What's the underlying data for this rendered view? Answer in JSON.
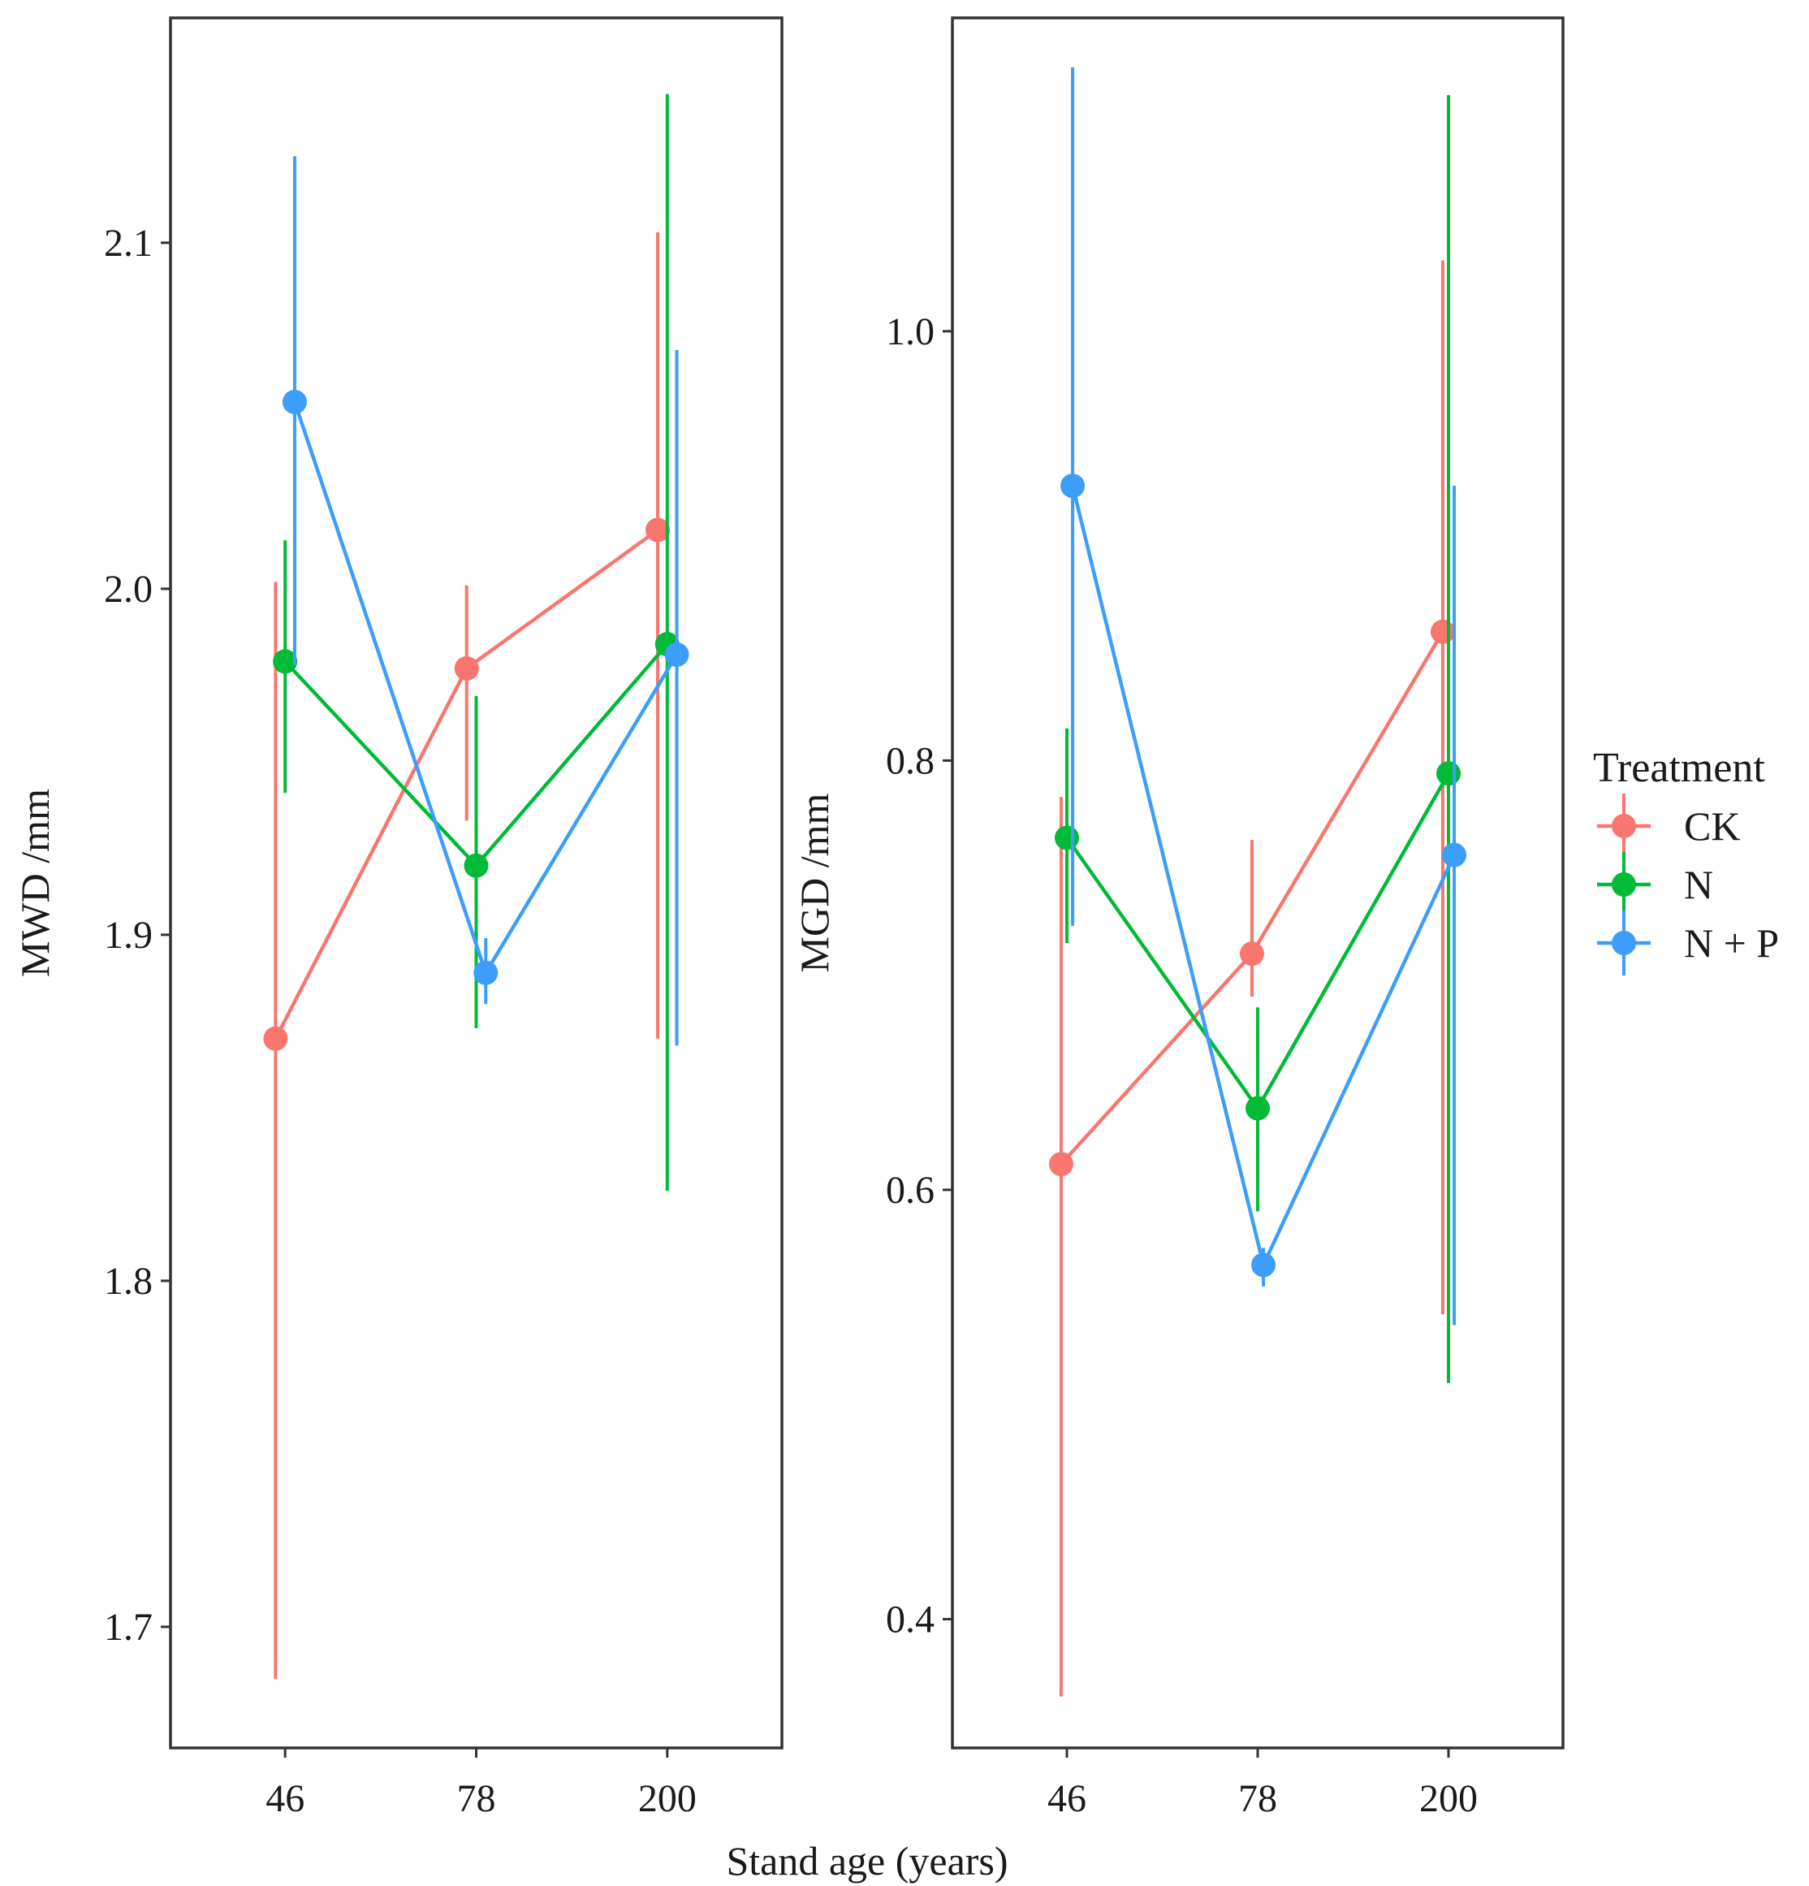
{
  "chart_data": [
    {
      "type": "line",
      "x_categories": [
        "46",
        "78",
        "200"
      ],
      "ylabel": "MWD /mm",
      "ylim": [
        1.665,
        2.165
      ],
      "yticks": [
        1.7,
        1.8,
        1.9,
        2.0,
        2.1
      ],
      "ytick_labels": [
        "1.7",
        "1.8",
        "1.9",
        "2.0",
        "2.1"
      ],
      "dodge": [
        -0.05,
        0.0,
        0.05
      ],
      "series": [
        {
          "name": "CK",
          "values": [
            1.87,
            1.977,
            2.017
          ],
          "lower": [
            1.685,
            1.933,
            1.87
          ],
          "upper": [
            2.002,
            2.001,
            2.103
          ]
        },
        {
          "name": "N",
          "values": [
            1.979,
            1.92,
            1.984
          ],
          "lower": [
            1.941,
            1.873,
            1.826
          ],
          "upper": [
            2.014,
            1.969,
            2.143
          ]
        },
        {
          "name": "N + P",
          "values": [
            2.054,
            1.889,
            1.981
          ],
          "lower": [
            1.978,
            1.88,
            1.868
          ],
          "upper": [
            2.125,
            1.899,
            2.069
          ]
        }
      ]
    },
    {
      "type": "line",
      "x_categories": [
        "46",
        "78",
        "200"
      ],
      "ylabel": "MGD /mm",
      "ylim": [
        0.34,
        1.146
      ],
      "yticks": [
        0.4,
        0.6,
        0.8,
        1.0
      ],
      "ytick_labels": [
        "0.4",
        "0.6",
        "0.8",
        "1.0"
      ],
      "dodge": [
        -0.03,
        0.0,
        0.03
      ],
      "series": [
        {
          "name": "CK",
          "values": [
            0.612,
            0.71,
            0.86
          ],
          "lower": [
            0.364,
            0.69,
            0.542
          ],
          "upper": [
            0.783,
            0.763,
            1.033
          ]
        },
        {
          "name": "N",
          "values": [
            0.764,
            0.638,
            0.794
          ],
          "lower": [
            0.715,
            0.59,
            0.51
          ],
          "upper": [
            0.815,
            0.685,
            1.11
          ]
        },
        {
          "name": "N + P",
          "values": [
            0.928,
            0.565,
            0.756
          ],
          "lower": [
            0.723,
            0.555,
            0.537
          ],
          "upper": [
            1.123,
            0.573,
            0.928
          ]
        }
      ]
    }
  ],
  "xlabel": "Stand age (years)",
  "legend": {
    "title": "Treatment",
    "position": "right",
    "items": [
      {
        "label": "CK",
        "color": "#F8766D"
      },
      {
        "label": "N",
        "color": "#00BA38"
      },
      {
        "label": "N + P",
        "color": "#3C9EF9"
      }
    ]
  }
}
